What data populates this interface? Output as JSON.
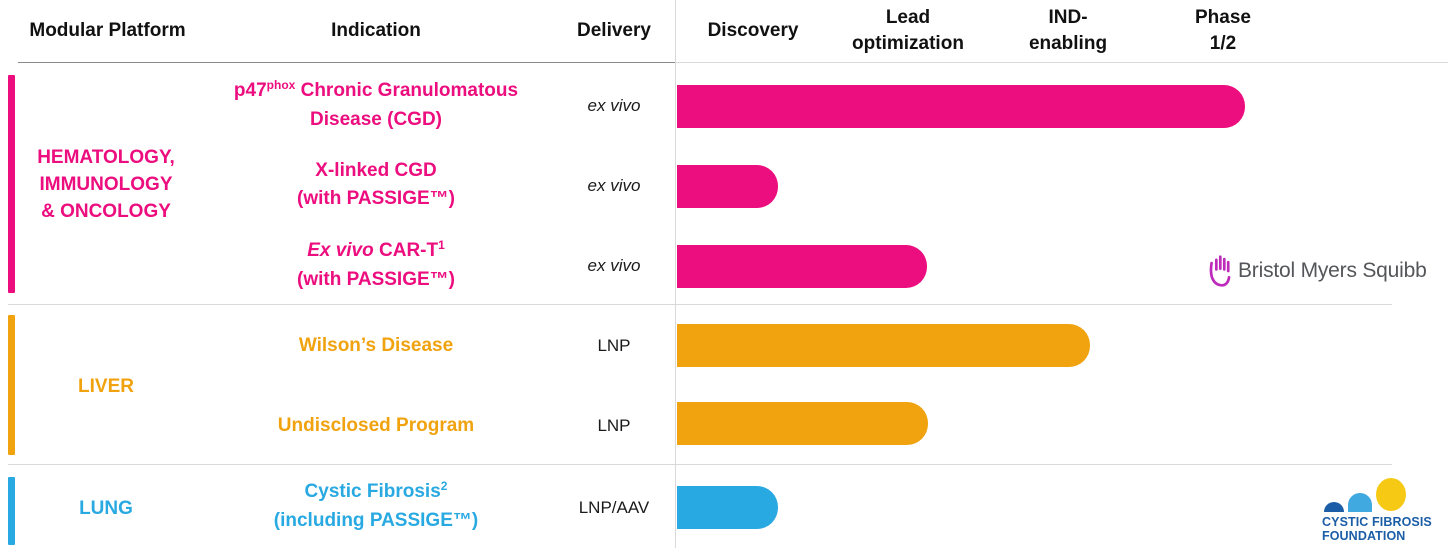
{
  "header": {
    "modular_platform": "Modular Platform",
    "indication": "Indication",
    "delivery": "Delivery",
    "stages": [
      "Discovery",
      "Lead optimization",
      "IND-enabling",
      "Phase 1/2"
    ]
  },
  "groups": [
    {
      "label_lines": [
        "HEMATOLOGY,",
        "IMMUNOLOGY",
        "& ONCOLOGY"
      ],
      "color": "#EC0D7E",
      "programs": [
        {
          "name_a": "p47",
          "name_sup": "phox",
          "name_b": " Chronic Granulomatous",
          "name_line2": "Disease (CGD)",
          "delivery": "ex vivo"
        },
        {
          "name_a": "X-linked CGD",
          "name_line2": "(with PASSIGE™)",
          "delivery": "ex vivo"
        },
        {
          "name_italic": "Ex vivo",
          "name_b": " CAR-T",
          "name_sup": "1",
          "name_line2": "(with PASSIGE™)",
          "delivery": "ex vivo"
        }
      ]
    },
    {
      "label_lines": [
        "LIVER"
      ],
      "color": "#F0A30F",
      "programs": [
        {
          "name_a": "Wilson’s Disease",
          "delivery": "LNP"
        },
        {
          "name_a": "Undisclosed Program",
          "delivery": "LNP"
        }
      ]
    },
    {
      "label_lines": [
        "LUNG"
      ],
      "color": "#29A9E1",
      "programs": [
        {
          "name_a": "Cystic Fibrosis",
          "name_sup": "2",
          "name_line2": "(including PASSIGE™)",
          "delivery": "LNP/AAV"
        }
      ]
    }
  ],
  "logos": {
    "bms": {
      "text": "Bristol Myers Squibb",
      "icon_color": "#BE2BBB",
      "text_color": "#54565A"
    },
    "cff": {
      "line1": "CYSTIC FIBROSIS",
      "line2": "FOUNDATION",
      "dark_blue": "#1B5DA6",
      "light_blue": "#3FA9E0",
      "yellow": "#F6C915"
    }
  },
  "chart_data": {
    "type": "bar",
    "orientation": "horizontal",
    "title": "",
    "stages": [
      "Discovery",
      "Lead optimization",
      "IND-enabling",
      "Phase 1/2"
    ],
    "xlim": [
      0,
      4
    ],
    "grid": false,
    "categories": [
      "p47phox Chronic Granulomatous Disease (CGD)",
      "X-linked CGD (with PASSIGE™)",
      "Ex vivo CAR-T¹ (with PASSIGE™)",
      "Wilson’s Disease",
      "Undisclosed Program",
      "Cystic Fibrosis² (including PASSIGE™)"
    ],
    "groups": [
      "HEMATOLOGY, IMMUNOLOGY & ONCOLOGY",
      "HEMATOLOGY, IMMUNOLOGY & ONCOLOGY",
      "HEMATOLOGY, IMMUNOLOGY & ONCOLOGY",
      "LIVER",
      "LIVER",
      "LUNG"
    ],
    "deliveries": [
      "ex vivo",
      "ex vivo",
      "ex vivo",
      "LNP",
      "LNP",
      "LNP/AAV"
    ],
    "values_stage_units": [
      3.64,
      0.65,
      1.6,
      2.65,
      1.61,
      0.65
    ],
    "series_colors": [
      "#EC0D7E",
      "#EC0D7E",
      "#EC0D7E",
      "#F0A30F",
      "#F0A30F",
      "#29A9E1"
    ]
  }
}
